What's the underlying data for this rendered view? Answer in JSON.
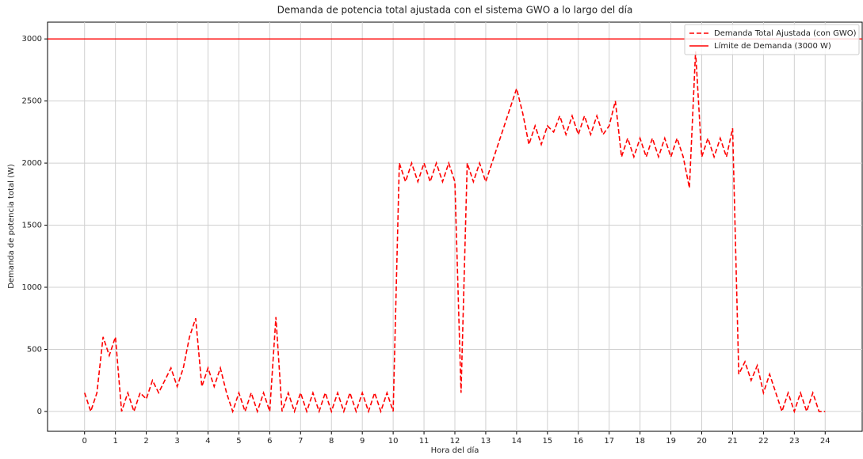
{
  "chart_data": {
    "type": "line",
    "title": "Demanda de potencia total ajustada con el sistema GWO a lo largo del día",
    "x_label": "Hora del día",
    "y_label": "Demanda de potencia total (W)",
    "x": [
      0,
      0.2,
      0.4,
      0.6,
      0.8,
      1,
      1.2,
      1.4,
      1.6,
      1.8,
      2,
      2.2,
      2.4,
      2.6,
      2.8,
      3,
      3.2,
      3.4,
      3.6,
      3.8,
      4,
      4.2,
      4.4,
      4.6,
      4.8,
      5,
      5.2,
      5.4,
      5.6,
      5.8,
      6,
      6.2,
      6.4,
      6.6,
      6.8,
      7,
      7.2,
      7.4,
      7.6,
      7.8,
      8,
      8.2,
      8.4,
      8.6,
      8.8,
      9,
      9.2,
      9.4,
      9.6,
      9.8,
      10,
      10.2,
      10.4,
      10.6,
      10.8,
      11,
      11.2,
      11.4,
      11.6,
      11.8,
      12,
      12.2,
      12.4,
      12.6,
      12.8,
      13,
      13.2,
      13.4,
      13.6,
      13.8,
      14,
      14.2,
      14.4,
      14.6,
      14.8,
      15,
      15.2,
      15.4,
      15.6,
      15.8,
      16,
      16.2,
      16.4,
      16.6,
      16.8,
      17,
      17.2,
      17.4,
      17.6,
      17.8,
      18,
      18.2,
      18.4,
      18.6,
      18.8,
      19,
      19.2,
      19.4,
      19.6,
      19.8,
      20,
      20.2,
      20.4,
      20.6,
      20.8,
      21,
      21.2,
      21.4,
      21.6,
      21.8,
      22,
      22.2,
      22.4,
      22.6,
      22.8,
      23,
      23.2,
      23.4,
      23.6,
      23.8,
      24
    ],
    "series": [
      {
        "name": "Demanda Total Ajustada (con GWO)",
        "color": "#ff0000",
        "dashed": true,
        "values": [
          150,
          0,
          150,
          600,
          450,
          600,
          0,
          150,
          0,
          150,
          100,
          250,
          150,
          250,
          350,
          200,
          350,
          600,
          750,
          200,
          350,
          200,
          350,
          150,
          0,
          150,
          0,
          150,
          0,
          150,
          0,
          760,
          0,
          150,
          0,
          150,
          0,
          150,
          0,
          150,
          0,
          150,
          0,
          150,
          0,
          150,
          0,
          150,
          0,
          150,
          0,
          2000,
          1850,
          2000,
          1850,
          2000,
          1850,
          2000,
          1850,
          2000,
          1850,
          150,
          2000,
          1850,
          2000,
          1850,
          2000,
          2150,
          2300,
          2450,
          2600,
          2400,
          2150,
          2300,
          2150,
          2300,
          2250,
          2380,
          2230,
          2380,
          2230,
          2380,
          2230,
          2380,
          2230,
          2300,
          2500,
          2050,
          2200,
          2050,
          2200,
          2050,
          2200,
          2050,
          2200,
          2050,
          2200,
          2050,
          1800,
          2900,
          2050,
          2200,
          2050,
          2200,
          2050,
          2280,
          300,
          400,
          250,
          370,
          150,
          300,
          150,
          0,
          150,
          0,
          150,
          0,
          150,
          0,
          0
        ]
      }
    ],
    "reference_lines": [
      {
        "name": "Límite de Demanda (3000 W)",
        "value": 3000,
        "color": "#ff0000"
      }
    ],
    "xlim": [
      -1.2,
      25.2
    ],
    "ylim": [
      -160,
      3135
    ],
    "xticks": [
      0,
      1,
      2,
      3,
      4,
      5,
      6,
      7,
      8,
      9,
      10,
      11,
      12,
      13,
      14,
      15,
      16,
      17,
      18,
      19,
      20,
      21,
      22,
      23,
      24
    ],
    "yticks": [
      0,
      500,
      1000,
      1500,
      2000,
      2500,
      3000
    ],
    "grid": true,
    "legend": "upper right"
  }
}
